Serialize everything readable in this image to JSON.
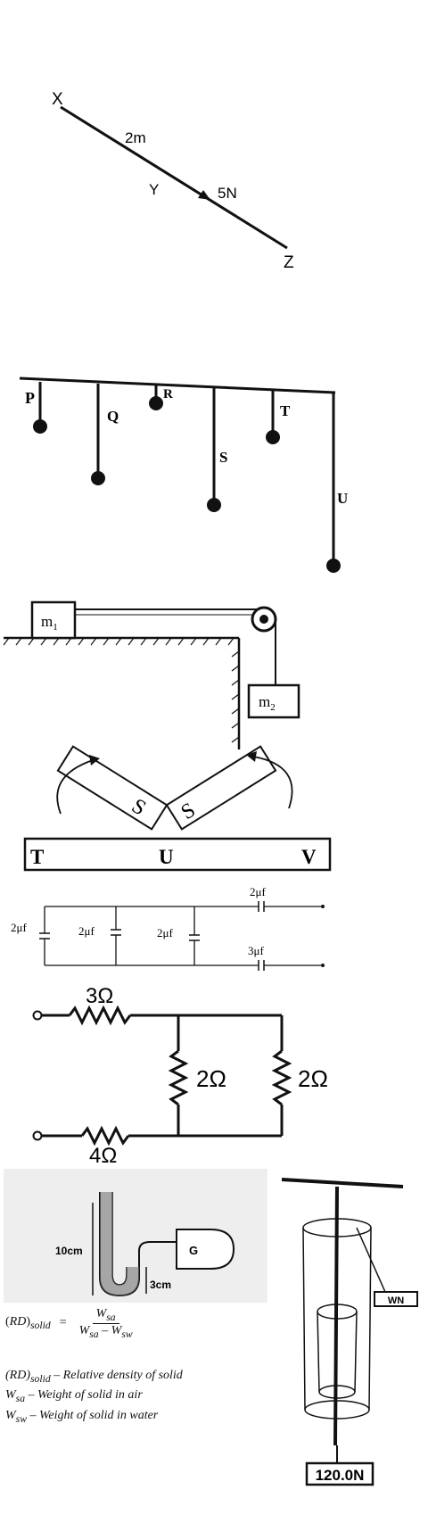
{
  "vector_diagram": {
    "point_x": "X",
    "point_y": "Y",
    "point_z": "Z",
    "length_label": "2m",
    "force_label": "5N"
  },
  "pendulums": {
    "labels": [
      "P",
      "Q",
      "R",
      "S",
      "T",
      "U"
    ]
  },
  "pulley": {
    "mass1": "m",
    "mass1_sub": "1",
    "mass2": "m",
    "mass2_sub": "2"
  },
  "magnets": {
    "pole_left": "S",
    "pole_right": "S",
    "bar_labels": [
      "T",
      "U",
      "V"
    ]
  },
  "capacitors": {
    "left": "2μf",
    "mid1": "2μf",
    "mid2": "2μf",
    "top_right": "2μf",
    "bottom_right": "3μf"
  },
  "resistors": {
    "top": "3Ω",
    "middle": "2Ω",
    "right": "2Ω",
    "bottom": "4Ω"
  },
  "manometer": {
    "height_left": "10cm",
    "height_right": "3cm",
    "gas_label": "G"
  },
  "spring_balance": {
    "top_reading": "WN",
    "bottom_reading": "120.0N"
  },
  "formula": {
    "lhs": "(RD)",
    "lhs_sub": "solid",
    "num": "W",
    "num_sub": "sa",
    "den_a": "W",
    "den_a_sub": "sa",
    "den_b": "W",
    "den_b_sub": "sw",
    "def1_sym": "(RD)",
    "def1_sub": "solid",
    "def1_text": " – Relative density of solid",
    "def2_sym": "W",
    "def2_sub": "sa",
    "def2_text": " – Weight of solid in air",
    "def3_sym": "W",
    "def3_sub": "sw",
    "def3_text": " – Weight of solid in water"
  }
}
